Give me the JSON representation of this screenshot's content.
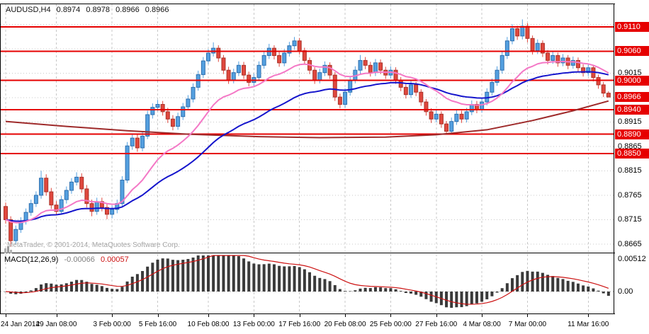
{
  "header": {
    "symbol_timeframe": "AUDUSD,H4",
    "open": "0.8974",
    "high": "0.8978",
    "low": "0.8966",
    "close": "0.8966"
  },
  "watermark": {
    "text": "MetaTrader, © 2001-2014, MetaQuotes Software Corp."
  },
  "price_axis": {
    "ticks": [
      "0.9015",
      "0.8915",
      "0.8865",
      "0.8815",
      "0.8765",
      "0.8715",
      "0.8665"
    ]
  },
  "colors": {
    "bull": "#54a0e0",
    "bull_border": "#2f6fae",
    "bear": "#e0483e",
    "bear_border": "#a93229",
    "level": "#e60000",
    "grid": "#c8c8c8",
    "macd_hist": "#3a3a3a",
    "macd_signal": "#cc1111",
    "label_bg": "#e60000",
    "label_text": "#ffffff"
  },
  "chart_data": {
    "type": "candlestick",
    "symbol": "AUDUSD",
    "timeframe": "H4",
    "title": "AUDUSD,H4 0.8974 0.8978 0.8966 0.8966",
    "price_scale": {
      "axis_min": 0.8649,
      "axis_max": 0.9156,
      "grid_step": 0.005,
      "grid_lines": [
        0.9115,
        0.9065,
        0.9015,
        0.8965,
        0.8915,
        0.8865,
        0.8815,
        0.8765,
        0.8715,
        0.8665
      ]
    },
    "levels": [
      0.911,
      0.906,
      0.9,
      0.894,
      0.889,
      0.885
    ],
    "current_price": 0.8966,
    "x_labels": [
      {
        "i": 0,
        "t": "24 Jan 2014"
      },
      {
        "i": 10,
        "t": "29 Jan 08:00"
      },
      {
        "i": 21,
        "t": "3 Feb 00:00"
      },
      {
        "i": 30,
        "t": "5 Feb 16:00"
      },
      {
        "i": 40,
        "t": "10 Feb 08:00"
      },
      {
        "i": 49,
        "t": "13 Feb 00:00"
      },
      {
        "i": 58,
        "t": "17 Feb 16:00"
      },
      {
        "i": 67,
        "t": "20 Feb 08:00"
      },
      {
        "i": 76,
        "t": "25 Feb 00:00"
      },
      {
        "i": 85,
        "t": "27 Feb 16:00"
      },
      {
        "i": 94,
        "t": "4 Mar 08:00"
      },
      {
        "i": 103,
        "t": "7 Mar 00:00"
      },
      {
        "i": 115,
        "t": "11 Mar 16:00"
      }
    ],
    "candles": [
      [
        0.8742,
        0.875,
        0.8707,
        0.8715
      ],
      [
        0.8715,
        0.8722,
        0.866,
        0.8672
      ],
      [
        0.8672,
        0.8703,
        0.8665,
        0.8695
      ],
      [
        0.8695,
        0.872,
        0.8688,
        0.8712
      ],
      [
        0.8712,
        0.8738,
        0.8705,
        0.873
      ],
      [
        0.873,
        0.8756,
        0.8723,
        0.8748
      ],
      [
        0.8748,
        0.8773,
        0.8741,
        0.8765
      ],
      [
        0.8765,
        0.8815,
        0.8758,
        0.88
      ],
      [
        0.88,
        0.8808,
        0.8764,
        0.8772
      ],
      [
        0.8772,
        0.878,
        0.8737,
        0.8745
      ],
      [
        0.8745,
        0.8753,
        0.8724,
        0.8732
      ],
      [
        0.8732,
        0.8764,
        0.8725,
        0.8756
      ],
      [
        0.8756,
        0.8783,
        0.8748,
        0.8775
      ],
      [
        0.8775,
        0.88,
        0.8768,
        0.8792
      ],
      [
        0.8792,
        0.8812,
        0.8785,
        0.8802
      ],
      [
        0.8802,
        0.881,
        0.877,
        0.8778
      ],
      [
        0.8778,
        0.8786,
        0.874,
        0.8748
      ],
      [
        0.8748,
        0.8756,
        0.8722,
        0.8732
      ],
      [
        0.8732,
        0.876,
        0.8725,
        0.8752
      ],
      [
        0.8752,
        0.876,
        0.8732,
        0.874
      ],
      [
        0.874,
        0.8748,
        0.8716,
        0.8726
      ],
      [
        0.8726,
        0.8744,
        0.8718,
        0.8736
      ],
      [
        0.8736,
        0.8756,
        0.8728,
        0.8748
      ],
      [
        0.8748,
        0.8804,
        0.874,
        0.8796
      ],
      [
        0.8796,
        0.8874,
        0.879,
        0.8866
      ],
      [
        0.8866,
        0.889,
        0.8858,
        0.8882
      ],
      [
        0.8882,
        0.889,
        0.8854,
        0.8862
      ],
      [
        0.8862,
        0.8894,
        0.8855,
        0.8886
      ],
      [
        0.8886,
        0.8938,
        0.888,
        0.893
      ],
      [
        0.893,
        0.8953,
        0.8922,
        0.8945
      ],
      [
        0.8945,
        0.896,
        0.8938,
        0.8951
      ],
      [
        0.8951,
        0.8958,
        0.8928,
        0.8936
      ],
      [
        0.8936,
        0.8944,
        0.8913,
        0.8921
      ],
      [
        0.8921,
        0.8929,
        0.8898,
        0.8906
      ],
      [
        0.8906,
        0.8934,
        0.8899,
        0.8926
      ],
      [
        0.8926,
        0.8954,
        0.8919,
        0.8946
      ],
      [
        0.8946,
        0.897,
        0.8939,
        0.8962
      ],
      [
        0.8962,
        0.8994,
        0.8955,
        0.8986
      ],
      [
        0.8986,
        0.902,
        0.8979,
        0.9012
      ],
      [
        0.9012,
        0.9048,
        0.9005,
        0.904
      ],
      [
        0.904,
        0.9064,
        0.9033,
        0.9056
      ],
      [
        0.9056,
        0.9078,
        0.9049,
        0.9066
      ],
      [
        0.9066,
        0.9072,
        0.9038,
        0.9046
      ],
      [
        0.9046,
        0.9052,
        0.9013,
        0.9021
      ],
      [
        0.9021,
        0.9028,
        0.8993,
        0.9001
      ],
      [
        0.9001,
        0.9024,
        0.8994,
        0.9016
      ],
      [
        0.9016,
        0.9039,
        0.9009,
        0.9031
      ],
      [
        0.9031,
        0.9038,
        0.9003,
        0.9011
      ],
      [
        0.9011,
        0.9018,
        0.8988,
        0.8996
      ],
      [
        0.8996,
        0.9014,
        0.8989,
        0.9006
      ],
      [
        0.9006,
        0.9039,
        0.8999,
        0.9031
      ],
      [
        0.9031,
        0.9059,
        0.9024,
        0.9051
      ],
      [
        0.9051,
        0.9075,
        0.9044,
        0.9066
      ],
      [
        0.9066,
        0.9072,
        0.9043,
        0.9051
      ],
      [
        0.9051,
        0.9058,
        0.9028,
        0.9036
      ],
      [
        0.9036,
        0.9064,
        0.9029,
        0.9056
      ],
      [
        0.9056,
        0.9079,
        0.9049,
        0.9071
      ],
      [
        0.9071,
        0.9089,
        0.9063,
        0.9081
      ],
      [
        0.9081,
        0.9087,
        0.9053,
        0.9061
      ],
      [
        0.9061,
        0.9067,
        0.9033,
        0.9041
      ],
      [
        0.9041,
        0.9047,
        0.9013,
        0.9021
      ],
      [
        0.9021,
        0.9027,
        0.8993,
        0.9001
      ],
      [
        0.9001,
        0.9024,
        0.8994,
        0.9016
      ],
      [
        0.9016,
        0.9039,
        0.9009,
        0.9031
      ],
      [
        0.9031,
        0.9037,
        0.9003,
        0.9011
      ],
      [
        0.9011,
        0.9017,
        0.8958,
        0.8966
      ],
      [
        0.8966,
        0.8973,
        0.8943,
        0.8951
      ],
      [
        0.8951,
        0.8984,
        0.8944,
        0.8976
      ],
      [
        0.8976,
        0.9009,
        0.8969,
        0.9001
      ],
      [
        0.9001,
        0.9029,
        0.8994,
        0.9021
      ],
      [
        0.9021,
        0.9052,
        0.9014,
        0.9041
      ],
      [
        0.9041,
        0.9048,
        0.9023,
        0.9031
      ],
      [
        0.9031,
        0.9038,
        0.9008,
        0.9016
      ],
      [
        0.9016,
        0.9044,
        0.9009,
        0.9036
      ],
      [
        0.9036,
        0.9043,
        0.9013,
        0.9021
      ],
      [
        0.9021,
        0.9028,
        0.9003,
        0.9011
      ],
      [
        0.9011,
        0.9029,
        0.9004,
        0.9021
      ],
      [
        0.9021,
        0.9027,
        0.8993,
        0.9001
      ],
      [
        0.9001,
        0.9007,
        0.8978,
        0.8986
      ],
      [
        0.8986,
        0.8992,
        0.8963,
        0.8971
      ],
      [
        0.8971,
        0.8999,
        0.8964,
        0.8991
      ],
      [
        0.8991,
        0.8997,
        0.8968,
        0.8976
      ],
      [
        0.8976,
        0.8982,
        0.8948,
        0.8956
      ],
      [
        0.8956,
        0.8962,
        0.8928,
        0.8936
      ],
      [
        0.8936,
        0.8943,
        0.8913,
        0.8921
      ],
      [
        0.8921,
        0.8939,
        0.8914,
        0.8931
      ],
      [
        0.8931,
        0.8937,
        0.8903,
        0.8911
      ],
      [
        0.8911,
        0.8917,
        0.889,
        0.8896
      ],
      [
        0.8896,
        0.8924,
        0.8891,
        0.8916
      ],
      [
        0.8916,
        0.8939,
        0.8909,
        0.8931
      ],
      [
        0.8931,
        0.8938,
        0.8913,
        0.8921
      ],
      [
        0.8921,
        0.8944,
        0.8914,
        0.8936
      ],
      [
        0.8936,
        0.8959,
        0.8929,
        0.8951
      ],
      [
        0.8951,
        0.8958,
        0.8933,
        0.8941
      ],
      [
        0.8941,
        0.8964,
        0.8934,
        0.8956
      ],
      [
        0.8956,
        0.8984,
        0.8949,
        0.8976
      ],
      [
        0.8976,
        0.9004,
        0.8969,
        0.8996
      ],
      [
        0.8996,
        0.9029,
        0.8989,
        0.9021
      ],
      [
        0.9021,
        0.9059,
        0.9014,
        0.9051
      ],
      [
        0.9051,
        0.9089,
        0.9044,
        0.9081
      ],
      [
        0.9081,
        0.9115,
        0.9074,
        0.9106
      ],
      [
        0.9106,
        0.9112,
        0.9083,
        0.9091
      ],
      [
        0.9091,
        0.9125,
        0.9084,
        0.9111
      ],
      [
        0.9111,
        0.9117,
        0.9078,
        0.9086
      ],
      [
        0.9086,
        0.9092,
        0.9053,
        0.9061
      ],
      [
        0.9061,
        0.9084,
        0.9054,
        0.9076
      ],
      [
        0.9076,
        0.9082,
        0.9048,
        0.9056
      ],
      [
        0.9056,
        0.9062,
        0.9033,
        0.9041
      ],
      [
        0.9041,
        0.9059,
        0.9034,
        0.9051
      ],
      [
        0.9051,
        0.9057,
        0.9028,
        0.9036
      ],
      [
        0.9036,
        0.9054,
        0.9029,
        0.9046
      ],
      [
        0.9046,
        0.9052,
        0.9023,
        0.9031
      ],
      [
        0.9031,
        0.9049,
        0.9024,
        0.9041
      ],
      [
        0.9041,
        0.9047,
        0.9018,
        0.9026
      ],
      [
        0.9026,
        0.9033,
        0.9008,
        0.9016
      ],
      [
        0.9016,
        0.9034,
        0.9009,
        0.9026
      ],
      [
        0.9026,
        0.9032,
        0.8998,
        0.9006
      ],
      [
        0.9006,
        0.9012,
        0.8983,
        0.8991
      ],
      [
        0.8991,
        0.8997,
        0.8966,
        0.8974
      ],
      [
        0.8974,
        0.8978,
        0.8966,
        0.8966
      ]
    ],
    "overlays": {
      "ema_fast": {
        "period": 18,
        "color": "#f478c6"
      },
      "ema_slow": {
        "period": 40,
        "color": "#1515cc"
      },
      "long_ma": {
        "color": "#9e2a2a",
        "points": [
          [
            0,
            0.8916
          ],
          [
            12,
            0.8906
          ],
          [
            24,
            0.8897
          ],
          [
            36,
            0.889
          ],
          [
            50,
            0.8885
          ],
          [
            62,
            0.8883
          ],
          [
            75,
            0.8884
          ],
          [
            85,
            0.8889
          ],
          [
            95,
            0.8899
          ],
          [
            104,
            0.8918
          ],
          [
            112,
            0.8938
          ],
          [
            119,
            0.8958
          ]
        ]
      }
    },
    "macd": {
      "label": "MACD(12,26,9)",
      "value_main": "-0.00066",
      "value_signal": "0.00057",
      "fast": 12,
      "slow": 26,
      "signal_period": 9,
      "scale_max": 0.00512,
      "axis_labels": [
        "0.00512",
        "0.00"
      ]
    }
  }
}
